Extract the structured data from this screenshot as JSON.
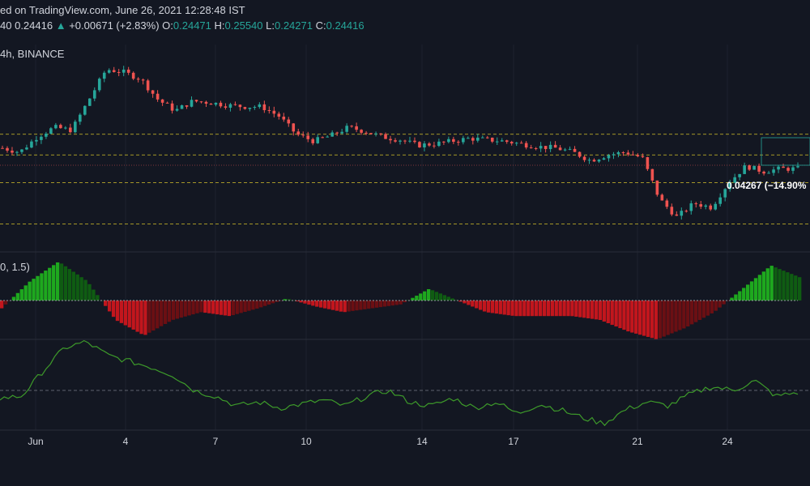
{
  "header": {
    "line1": "ed on TradingView.com, June 26, 2021 12:28:48 IST",
    "prev_close_fragment": "40",
    "last_price": "0.24416",
    "change": "+0.00671 (+2.83%)",
    "open_label": "O:",
    "open": "0.24471",
    "high_label": "H:",
    "high": "0.25540",
    "low_label": "L:",
    "low": "0.24271",
    "close_label": "C:",
    "close": "0.24416"
  },
  "symbol_info": "4h, BINANCE",
  "indicator_params": "0, 1.5)",
  "measure_label": "0.04267 (−14.90%",
  "colors": {
    "background": "#131722",
    "up": "#26a69a",
    "down": "#ef5350",
    "level_line": "#d4c12a",
    "osc_pos_strong": "#1ea81e",
    "osc_pos_weak": "#0f5c12",
    "osc_neg_strong": "#c2161d",
    "osc_neg_weak": "#6b0f13",
    "rsi_line": "#3d9a2a"
  },
  "chart_data": {
    "type": "candlestick",
    "xticks": [
      "Jun",
      "4",
      "7",
      "10",
      "14",
      "17",
      "21",
      "24"
    ],
    "price_path": [
      0.275,
      0.272,
      0.283,
      0.29,
      0.288,
      0.31,
      0.332,
      0.33,
      0.325,
      0.31,
      0.302,
      0.309,
      0.308,
      0.306,
      0.305,
      0.305,
      0.298,
      0.285,
      0.28,
      0.284,
      0.29,
      0.287,
      0.283,
      0.281,
      0.277,
      0.278,
      0.28,
      0.282,
      0.281,
      0.28,
      0.278,
      0.276,
      0.275,
      0.272,
      0.266,
      0.27,
      0.272,
      0.268,
      0.238,
      0.225,
      0.235,
      0.232,
      0.25,
      0.262,
      0.258,
      0.26,
      0.26
    ],
    "levels": [
      0.285,
      0.27,
      0.25,
      0.22
    ],
    "oscillator_path": [
      -0.2,
      0.5,
      1.0,
      0.5,
      -0.5,
      -0.9,
      -0.5,
      -0.3,
      -0.4,
      -0.2,
      0.05,
      -0.15,
      -0.3,
      -0.2,
      -0.1,
      0.3,
      0.0,
      -0.3,
      -0.4,
      -0.4,
      -0.4,
      -0.5,
      -0.8,
      -1.0,
      -0.7,
      -0.3,
      0.3,
      0.9,
      0.6
    ],
    "rsi_path": [
      46,
      47,
      60,
      72,
      75,
      68,
      65,
      62,
      58,
      50,
      47,
      42,
      44,
      41,
      43,
      45,
      42,
      47,
      50,
      44,
      42,
      46,
      41,
      44,
      38,
      43,
      40,
      36,
      33,
      40,
      44,
      42,
      48,
      52,
      50,
      55,
      47,
      49
    ],
    "rsi_midline": 50
  }
}
